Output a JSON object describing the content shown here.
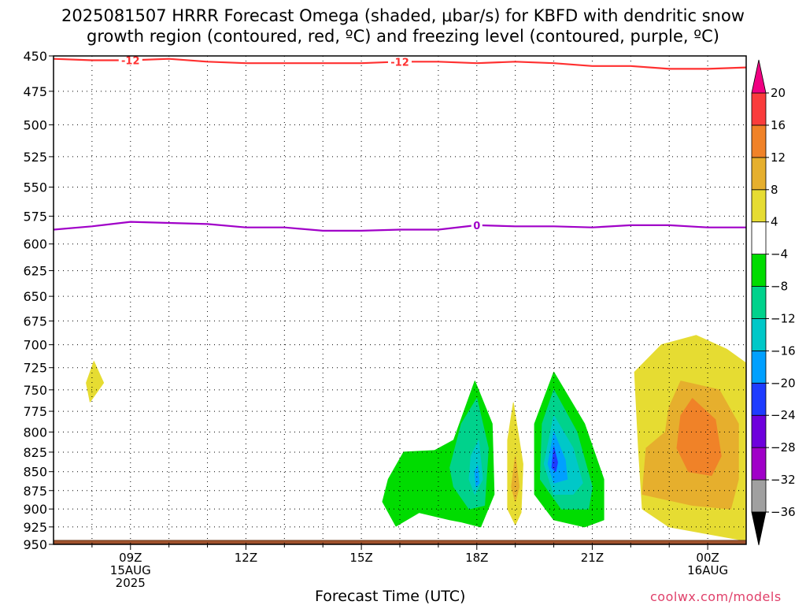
{
  "chart_data": {
    "type": "heatmap",
    "title": "2025081507 HRRR Forecast Omega (shaded, μbar/s) for KBFD with dendritic snow",
    "subtitle": "growth region (contoured, red, ºC) and freezing level (contoured, purple, ºC)",
    "xlabel": "Forecast Time (UTC)",
    "ylabel": "",
    "y_ticks": [
      450,
      475,
      500,
      525,
      550,
      575,
      600,
      625,
      650,
      675,
      700,
      725,
      750,
      775,
      800,
      825,
      850,
      875,
      900,
      925,
      950
    ],
    "y_axis": "pressure (hPa), inverted, log scale",
    "x_range_hours_utc": [
      "2025-08-15 07Z",
      "2025-08-16 01Z"
    ],
    "x_ticks": [
      {
        "hour": 9,
        "lines": [
          "09Z",
          "15AUG",
          "2025"
        ]
      },
      {
        "hour": 12,
        "lines": [
          "12Z"
        ]
      },
      {
        "hour": 15,
        "lines": [
          "15Z"
        ]
      },
      {
        "hour": 18,
        "lines": [
          "18Z"
        ]
      },
      {
        "hour": 21,
        "lines": [
          "21Z"
        ]
      },
      {
        "hour": 24,
        "lines": [
          "00Z",
          "16AUG"
        ]
      }
    ],
    "grid": true,
    "colorbar": {
      "position": "right",
      "labels": [
        "20",
        "16",
        "12",
        "8",
        "4",
        "−4",
        "−8",
        "−12",
        "−16",
        "−20",
        "−24",
        "−28",
        "−32",
        "−36"
      ],
      "bins": [
        {
          "range": [
            -40,
            -36
          ],
          "color": "#000000"
        },
        {
          "range": [
            -36,
            -32
          ],
          "color": "#a0a0a0"
        },
        {
          "range": [
            -32,
            -28
          ],
          "color": "#a000c8"
        },
        {
          "range": [
            -28,
            -24
          ],
          "color": "#6e00dc"
        },
        {
          "range": [
            -24,
            -20
          ],
          "color": "#1e3cff"
        },
        {
          "range": [
            -20,
            -16
          ],
          "color": "#00a0ff"
        },
        {
          "range": [
            -16,
            -12
          ],
          "color": "#00c8c8"
        },
        {
          "range": [
            -12,
            -8
          ],
          "color": "#00d28c"
        },
        {
          "range": [
            -8,
            -4
          ],
          "color": "#00dc00"
        },
        {
          "range": [
            -4,
            4
          ],
          "color": "#ffffff"
        },
        {
          "range": [
            4,
            8
          ],
          "color": "#e6dc32"
        },
        {
          "range": [
            8,
            12
          ],
          "color": "#e6af2d"
        },
        {
          "range": [
            12,
            16
          ],
          "color": "#f08228"
        },
        {
          "range": [
            16,
            20
          ],
          "color": "#fa3c3c"
        },
        {
          "range": [
            20,
            24
          ],
          "color": "#f00082"
        }
      ]
    },
    "contours": [
      {
        "name": "dendritic growth region",
        "color": "#ff3030",
        "label": "-12",
        "points": [
          [
            7.0,
            452
          ],
          [
            8.0,
            453
          ],
          [
            9.0,
            453
          ],
          [
            10.0,
            452
          ],
          [
            11.0,
            454
          ],
          [
            12.0,
            455
          ],
          [
            13.0,
            455
          ],
          [
            14.0,
            455
          ],
          [
            15.0,
            455
          ],
          [
            16.0,
            454
          ],
          [
            17.0,
            454
          ],
          [
            18.0,
            455
          ],
          [
            19.0,
            454
          ],
          [
            20.0,
            455
          ],
          [
            21.0,
            457
          ],
          [
            22.0,
            457
          ],
          [
            23.0,
            459
          ],
          [
            24.0,
            459
          ],
          [
            25.0,
            458
          ]
        ],
        "label_hours": [
          9.0,
          16.0
        ]
      },
      {
        "name": "freezing level",
        "color": "#a000c8",
        "label": "0",
        "points": [
          [
            7.0,
            587
          ],
          [
            8.0,
            584
          ],
          [
            9.0,
            580
          ],
          [
            10.0,
            581
          ],
          [
            11.0,
            582
          ],
          [
            12.0,
            585
          ],
          [
            13.0,
            585
          ],
          [
            14.0,
            588
          ],
          [
            15.0,
            588
          ],
          [
            16.0,
            587
          ],
          [
            17.0,
            587
          ],
          [
            18.0,
            583
          ],
          [
            19.0,
            584
          ],
          [
            20.0,
            584
          ],
          [
            21.0,
            585
          ],
          [
            22.0,
            583
          ],
          [
            23.0,
            583
          ],
          [
            24.0,
            585
          ],
          [
            25.0,
            585
          ]
        ],
        "label_hours": [
          18.0
        ]
      }
    ],
    "shaded_regions": [
      {
        "value_range": [
          4,
          8
        ],
        "color": "#e6dc32",
        "points": [
          [
            8.05,
            718
          ],
          [
            8.3,
            742
          ],
          [
            7.95,
            764
          ],
          [
            7.85,
            742
          ]
        ]
      },
      {
        "value_range": [
          -8,
          -4
        ],
        "color": "#00dc00",
        "points": [
          [
            15.7,
            860
          ],
          [
            16.1,
            825
          ],
          [
            16.9,
            823
          ],
          [
            17.4,
            810
          ],
          [
            17.95,
            740
          ],
          [
            18.4,
            790
          ],
          [
            18.45,
            880
          ],
          [
            18.1,
            925
          ],
          [
            17.6,
            918
          ],
          [
            17.3,
            915
          ],
          [
            16.5,
            905
          ],
          [
            15.9,
            924
          ],
          [
            15.55,
            890
          ]
        ]
      },
      {
        "value_range": [
          -12,
          -8
        ],
        "color": "#00d28c",
        "points": [
          [
            17.6,
            790
          ],
          [
            18.0,
            760
          ],
          [
            18.3,
            820
          ],
          [
            18.2,
            895
          ],
          [
            17.8,
            900
          ],
          [
            17.4,
            870
          ],
          [
            17.3,
            845
          ]
        ]
      },
      {
        "value_range": [
          -16,
          -12
        ],
        "color": "#00c8c8",
        "points": [
          [
            17.85,
            830
          ],
          [
            18.05,
            810
          ],
          [
            18.15,
            860
          ],
          [
            17.95,
            880
          ],
          [
            17.8,
            860
          ]
        ]
      },
      {
        "value_range": [
          -20,
          -16
        ],
        "color": "#00a0ff",
        "points": [
          [
            17.95,
            850
          ],
          [
            18.02,
            842
          ],
          [
            18.06,
            865
          ],
          [
            17.98,
            870
          ]
        ]
      },
      {
        "value_range": [
          4,
          8
        ],
        "color": "#e6dc32",
        "points": [
          [
            18.95,
            765
          ],
          [
            19.2,
            840
          ],
          [
            19.15,
            905
          ],
          [
            19.0,
            922
          ],
          [
            18.8,
            900
          ],
          [
            18.8,
            810
          ]
        ]
      },
      {
        "value_range": [
          8,
          12
        ],
        "color": "#e6af2d",
        "points": [
          [
            19.0,
            830
          ],
          [
            19.1,
            870
          ],
          [
            19.0,
            890
          ],
          [
            18.9,
            870
          ]
        ]
      },
      {
        "value_range": [
          -8,
          -4
        ],
        "color": "#00dc00",
        "points": [
          [
            20.0,
            730
          ],
          [
            20.8,
            790
          ],
          [
            21.3,
            860
          ],
          [
            21.3,
            915
          ],
          [
            20.8,
            925
          ],
          [
            20.0,
            915
          ],
          [
            19.5,
            880
          ],
          [
            19.5,
            790
          ]
        ]
      },
      {
        "value_range": [
          -12,
          -8
        ],
        "color": "#00d28c",
        "points": [
          [
            20.0,
            750
          ],
          [
            20.6,
            800
          ],
          [
            21.0,
            870
          ],
          [
            20.9,
            900
          ],
          [
            20.2,
            900
          ],
          [
            19.65,
            860
          ],
          [
            19.7,
            790
          ]
        ]
      },
      {
        "value_range": [
          -16,
          -12
        ],
        "color": "#00c8c8",
        "points": [
          [
            20.0,
            780
          ],
          [
            20.5,
            820
          ],
          [
            20.75,
            865
          ],
          [
            20.5,
            880
          ],
          [
            20.0,
            880
          ],
          [
            19.75,
            840
          ]
        ]
      },
      {
        "value_range": [
          -20,
          -16
        ],
        "color": "#00a0ff",
        "points": [
          [
            20.0,
            800
          ],
          [
            20.3,
            835
          ],
          [
            20.35,
            860
          ],
          [
            20.0,
            865
          ],
          [
            19.85,
            840
          ]
        ]
      },
      {
        "value_range": [
          -24,
          -20
        ],
        "color": "#1e3cff",
        "points": [
          [
            20.0,
            818
          ],
          [
            20.1,
            838
          ],
          [
            20.05,
            850
          ],
          [
            19.95,
            845
          ]
        ]
      },
      {
        "value_range": [
          4,
          8
        ],
        "color": "#e6dc32",
        "points": [
          [
            22.8,
            700
          ],
          [
            23.7,
            690
          ],
          [
            24.5,
            705
          ],
          [
            25.0,
            720
          ],
          [
            25.0,
            945
          ],
          [
            24.0,
            935
          ],
          [
            23.0,
            925
          ],
          [
            22.3,
            900
          ],
          [
            22.2,
            820
          ],
          [
            22.1,
            730
          ]
        ]
      },
      {
        "value_range": [
          8,
          12
        ],
        "color": "#e6af2d",
        "points": [
          [
            23.3,
            740
          ],
          [
            24.3,
            750
          ],
          [
            24.8,
            790
          ],
          [
            24.8,
            860
          ],
          [
            24.6,
            900
          ],
          [
            23.6,
            895
          ],
          [
            22.3,
            880
          ],
          [
            22.4,
            820
          ],
          [
            22.9,
            800
          ],
          [
            23.0,
            770
          ]
        ]
      },
      {
        "value_range": [
          12,
          16
        ],
        "color": "#f08228",
        "points": [
          [
            23.6,
            760
          ],
          [
            24.2,
            785
          ],
          [
            24.35,
            830
          ],
          [
            24.1,
            855
          ],
          [
            23.5,
            850
          ],
          [
            23.2,
            820
          ],
          [
            23.3,
            780
          ]
        ]
      }
    ]
  },
  "credit": "coolwx.com/models"
}
